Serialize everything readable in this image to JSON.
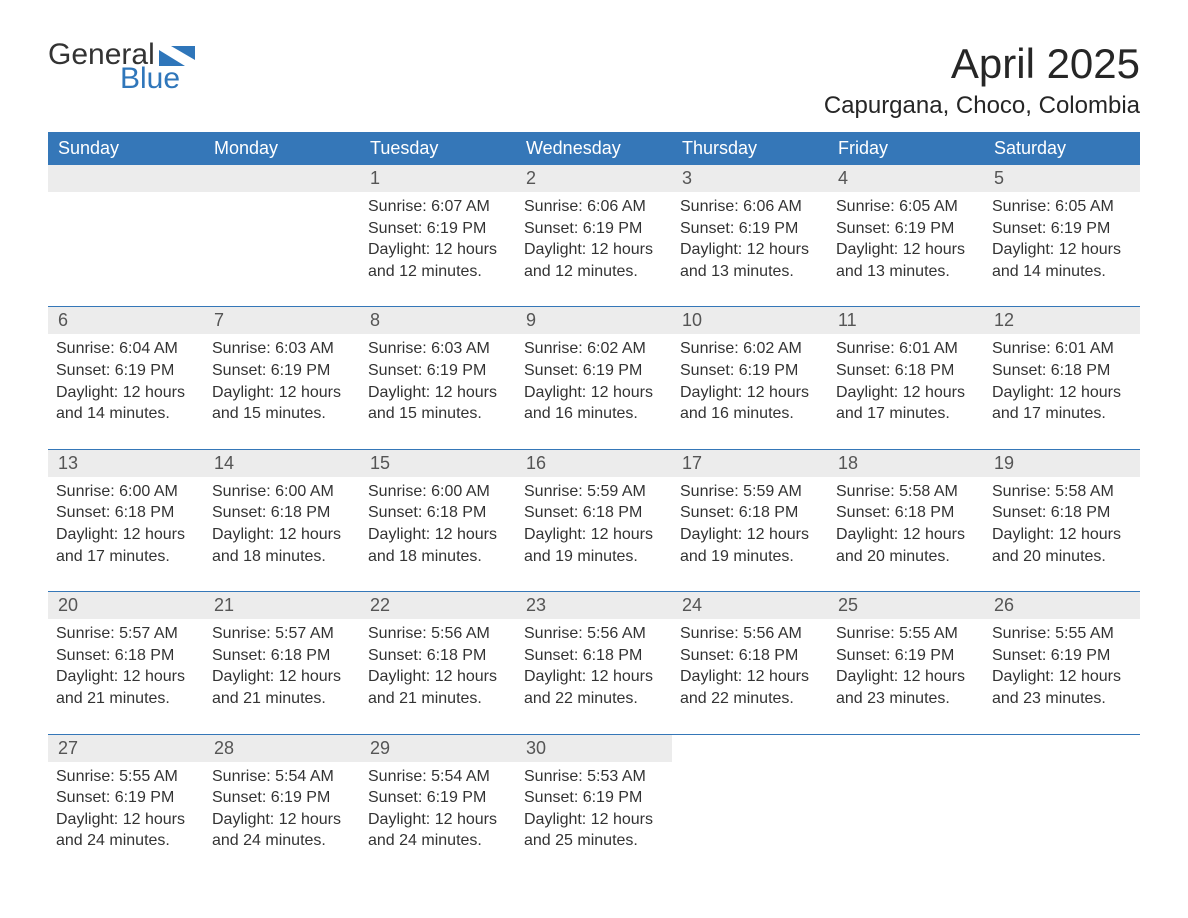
{
  "logo": {
    "general": "General",
    "blue": "Blue",
    "fill": "#2f76ba"
  },
  "header": {
    "title": "April 2025",
    "location": "Capurgana, Choco, Colombia"
  },
  "colors": {
    "header_bg": "#3577b8",
    "header_fg": "#ffffff",
    "dayband_bg": "#ececec",
    "dayband_fg": "#555555",
    "text": "#333333",
    "rule": "#3577b8",
    "background": "#ffffff"
  },
  "typography": {
    "title_fontsize_pt": 32,
    "location_fontsize_pt": 18,
    "weekday_fontsize_pt": 14,
    "daynum_fontsize_pt": 14,
    "body_fontsize_pt": 12,
    "font_family": "Arial"
  },
  "calendar": {
    "type": "table",
    "columns": [
      "Sunday",
      "Monday",
      "Tuesday",
      "Wednesday",
      "Thursday",
      "Friday",
      "Saturday"
    ],
    "weeks": [
      [
        null,
        null,
        {
          "d": "1",
          "sr": "6:07 AM",
          "ss": "6:19 PM",
          "dl": "12 hours and 12 minutes."
        },
        {
          "d": "2",
          "sr": "6:06 AM",
          "ss": "6:19 PM",
          "dl": "12 hours and 12 minutes."
        },
        {
          "d": "3",
          "sr": "6:06 AM",
          "ss": "6:19 PM",
          "dl": "12 hours and 13 minutes."
        },
        {
          "d": "4",
          "sr": "6:05 AM",
          "ss": "6:19 PM",
          "dl": "12 hours and 13 minutes."
        },
        {
          "d": "5",
          "sr": "6:05 AM",
          "ss": "6:19 PM",
          "dl": "12 hours and 14 minutes."
        }
      ],
      [
        {
          "d": "6",
          "sr": "6:04 AM",
          "ss": "6:19 PM",
          "dl": "12 hours and 14 minutes."
        },
        {
          "d": "7",
          "sr": "6:03 AM",
          "ss": "6:19 PM",
          "dl": "12 hours and 15 minutes."
        },
        {
          "d": "8",
          "sr": "6:03 AM",
          "ss": "6:19 PM",
          "dl": "12 hours and 15 minutes."
        },
        {
          "d": "9",
          "sr": "6:02 AM",
          "ss": "6:19 PM",
          "dl": "12 hours and 16 minutes."
        },
        {
          "d": "10",
          "sr": "6:02 AM",
          "ss": "6:19 PM",
          "dl": "12 hours and 16 minutes."
        },
        {
          "d": "11",
          "sr": "6:01 AM",
          "ss": "6:18 PM",
          "dl": "12 hours and 17 minutes."
        },
        {
          "d": "12",
          "sr": "6:01 AM",
          "ss": "6:18 PM",
          "dl": "12 hours and 17 minutes."
        }
      ],
      [
        {
          "d": "13",
          "sr": "6:00 AM",
          "ss": "6:18 PM",
          "dl": "12 hours and 17 minutes."
        },
        {
          "d": "14",
          "sr": "6:00 AM",
          "ss": "6:18 PM",
          "dl": "12 hours and 18 minutes."
        },
        {
          "d": "15",
          "sr": "6:00 AM",
          "ss": "6:18 PM",
          "dl": "12 hours and 18 minutes."
        },
        {
          "d": "16",
          "sr": "5:59 AM",
          "ss": "6:18 PM",
          "dl": "12 hours and 19 minutes."
        },
        {
          "d": "17",
          "sr": "5:59 AM",
          "ss": "6:18 PM",
          "dl": "12 hours and 19 minutes."
        },
        {
          "d": "18",
          "sr": "5:58 AM",
          "ss": "6:18 PM",
          "dl": "12 hours and 20 minutes."
        },
        {
          "d": "19",
          "sr": "5:58 AM",
          "ss": "6:18 PM",
          "dl": "12 hours and 20 minutes."
        }
      ],
      [
        {
          "d": "20",
          "sr": "5:57 AM",
          "ss": "6:18 PM",
          "dl": "12 hours and 21 minutes."
        },
        {
          "d": "21",
          "sr": "5:57 AM",
          "ss": "6:18 PM",
          "dl": "12 hours and 21 minutes."
        },
        {
          "d": "22",
          "sr": "5:56 AM",
          "ss": "6:18 PM",
          "dl": "12 hours and 21 minutes."
        },
        {
          "d": "23",
          "sr": "5:56 AM",
          "ss": "6:18 PM",
          "dl": "12 hours and 22 minutes."
        },
        {
          "d": "24",
          "sr": "5:56 AM",
          "ss": "6:18 PM",
          "dl": "12 hours and 22 minutes."
        },
        {
          "d": "25",
          "sr": "5:55 AM",
          "ss": "6:19 PM",
          "dl": "12 hours and 23 minutes."
        },
        {
          "d": "26",
          "sr": "5:55 AM",
          "ss": "6:19 PM",
          "dl": "12 hours and 23 minutes."
        }
      ],
      [
        {
          "d": "27",
          "sr": "5:55 AM",
          "ss": "6:19 PM",
          "dl": "12 hours and 24 minutes."
        },
        {
          "d": "28",
          "sr": "5:54 AM",
          "ss": "6:19 PM",
          "dl": "12 hours and 24 minutes."
        },
        {
          "d": "29",
          "sr": "5:54 AM",
          "ss": "6:19 PM",
          "dl": "12 hours and 24 minutes."
        },
        {
          "d": "30",
          "sr": "5:53 AM",
          "ss": "6:19 PM",
          "dl": "12 hours and 25 minutes."
        },
        null,
        null,
        null
      ]
    ],
    "labels": {
      "sunrise": "Sunrise: ",
      "sunset": "Sunset: ",
      "daylight": "Daylight: "
    }
  }
}
